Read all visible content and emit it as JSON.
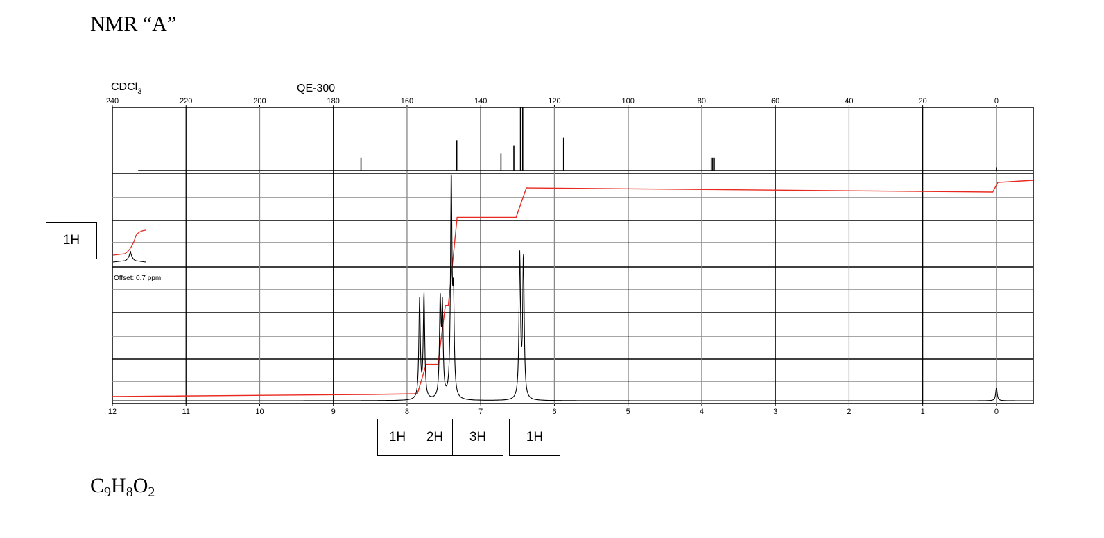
{
  "page": {
    "title": "NMR “A”",
    "formula": {
      "c": "C",
      "c_n": "9",
      "h": "H",
      "h_n": "8",
      "o": "O",
      "o_n": "2"
    }
  },
  "boxes": {
    "left": "1H",
    "b1": "1H",
    "b2": "2H",
    "b3": "3H",
    "b4": "1H"
  },
  "chart_data": {
    "type": "line",
    "title": "",
    "solvent_label": "CDCl3",
    "instrument_label": "QE-300",
    "offset_label": "Offset: 0.7 ppm.",
    "grid": true,
    "colors": {
      "spectrum": "#000000",
      "integral": "#e8291f",
      "grid_dark": "#000000",
      "grid_light": "#888888"
    },
    "carbon_axis": {
      "range": [
        240,
        -10
      ],
      "ticks": [
        240,
        220,
        200,
        180,
        160,
        140,
        120,
        100,
        80,
        60,
        40,
        20,
        0
      ],
      "peaks": [
        {
          "ppm": 172.5,
          "height": 0.2
        },
        {
          "ppm": 146.5,
          "height": 0.48
        },
        {
          "ppm": 134.5,
          "height": 0.27
        },
        {
          "ppm": 131.0,
          "height": 0.4
        },
        {
          "ppm": 129.2,
          "height": 1.0
        },
        {
          "ppm": 128.6,
          "height": 1.0
        },
        {
          "ppm": 117.5,
          "height": 0.52
        },
        {
          "ppm": 77.4,
          "height": 0.2
        },
        {
          "ppm": 77.0,
          "height": 0.2
        },
        {
          "ppm": 76.6,
          "height": 0.2
        },
        {
          "ppm": 0.0,
          "height": 0.05
        }
      ]
    },
    "proton_axis": {
      "range": [
        12,
        -0.5
      ],
      "ticks": [
        12,
        11,
        10,
        9,
        8,
        7,
        6,
        5,
        4,
        3,
        2,
        1,
        0
      ],
      "peaks": [
        {
          "ppm": 7.83,
          "height": 0.45
        },
        {
          "ppm": 7.77,
          "height": 0.48
        },
        {
          "ppm": 7.55,
          "height": 0.43
        },
        {
          "ppm": 7.52,
          "height": 0.4
        },
        {
          "ppm": 7.4,
          "height": 1.0
        },
        {
          "ppm": 7.37,
          "height": 0.42
        },
        {
          "ppm": 6.47,
          "height": 0.65
        },
        {
          "ppm": 6.42,
          "height": 0.65
        },
        {
          "ppm": 0.0,
          "height": 0.06
        }
      ],
      "integral_steps": [
        {
          "ppm_start": 7.86,
          "ppm_end": 7.74,
          "fraction": 0.125
        },
        {
          "ppm_start": 7.58,
          "ppm_end": 7.48,
          "fraction": 0.25
        },
        {
          "ppm_start": 7.44,
          "ppm_end": 7.32,
          "fraction": 0.375
        },
        {
          "ppm_start": 6.52,
          "ppm_end": 6.38,
          "fraction": 0.125
        }
      ]
    },
    "integration_labels": [
      "1H",
      "2H",
      "3H",
      "1H"
    ]
  }
}
